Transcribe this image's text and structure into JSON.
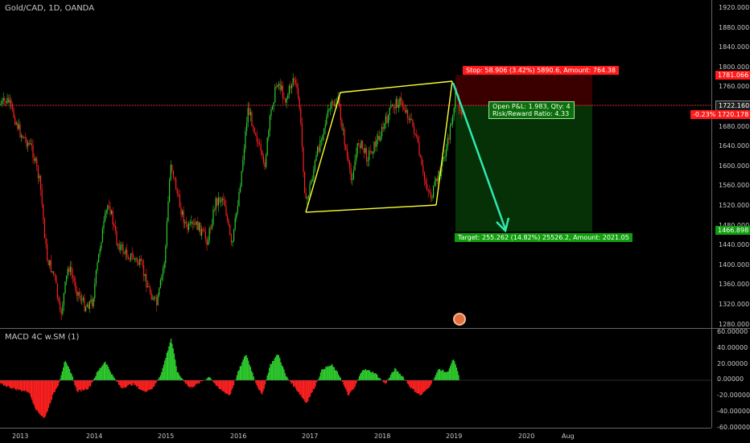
{
  "header": {
    "symbol_title": "Gold/CAD, 1D, OANDA"
  },
  "macd": {
    "title": "MACD 4C w.SM (1)"
  },
  "price_axis": {
    "ticks": [
      "1920.000",
      "1880.000",
      "1840.000",
      "1800.000",
      "1760.000",
      "1720.000",
      "1680.000",
      "1640.000",
      "1600.000",
      "1560.000",
      "1520.000",
      "1480.000",
      "1440.000",
      "1400.000",
      "1360.000",
      "1320.000",
      "1280.000"
    ]
  },
  "macd_axis": {
    "ticks": [
      "60.00000",
      "40.00000",
      "20.00000",
      "0.00000",
      "-20.00000",
      "-40.00000",
      "-60.00000"
    ]
  },
  "time_axis": {
    "labels": [
      "2013",
      "2014",
      "2015",
      "2016",
      "2017",
      "2018",
      "2019",
      "2020",
      "Aug"
    ]
  },
  "tags": {
    "stop_price": "1781.066",
    "last_price": "1722.160",
    "entry_price": "1720.178",
    "target_price": "1466.898",
    "change_pct": "-0.23%"
  },
  "position": {
    "stop_label": "Stop: 58.906 (3.42%) 5890.6, Amount: 764.38",
    "target_label": "Target: 255.262 (14.82%) 25526.2, Amount: 2021.05",
    "pnl_label": "Open P&L: 1.983, Qty: 4",
    "rr_label": "Risk/Reward Ratio: 4.33"
  },
  "colors": {
    "up": "#2ecc2e",
    "down": "#ff2020",
    "channel": "#ffff33",
    "arrow": "#2ee8b0",
    "stop_zone": "#3a0000",
    "target_zone": "#063006"
  }
}
